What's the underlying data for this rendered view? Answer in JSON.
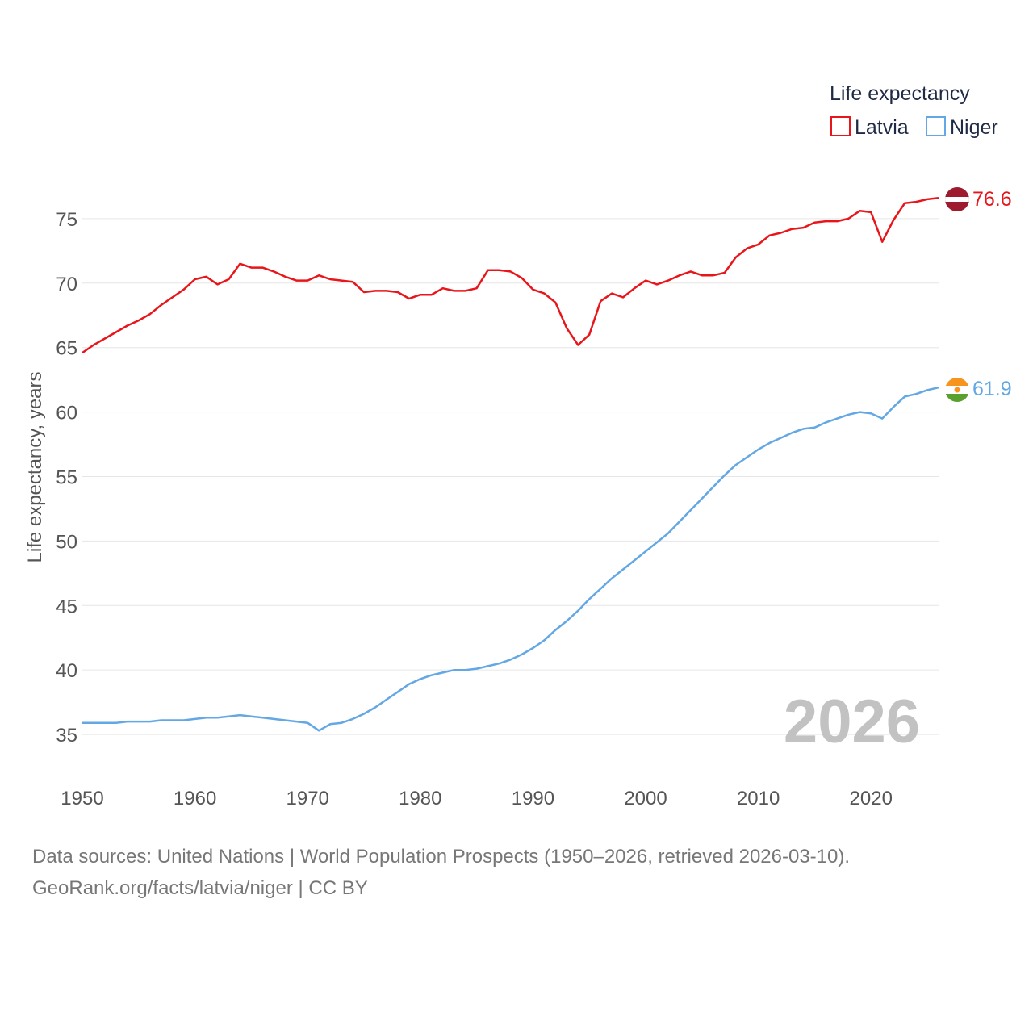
{
  "chart_data": {
    "type": "line",
    "title": "",
    "xlabel": "",
    "ylabel": "Life expectancy, years",
    "xlim": [
      1950,
      2026
    ],
    "ylim": [
      32,
      79
    ],
    "x_ticks": [
      1950,
      1960,
      1970,
      1980,
      1990,
      2000,
      2010,
      2020
    ],
    "y_ticks": [
      35,
      40,
      45,
      50,
      55,
      60,
      65,
      70,
      75
    ],
    "grid": true,
    "year_watermark": "2026",
    "legend": {
      "title": "Life expectancy",
      "position": "top-right",
      "entries": [
        "Latvia",
        "Niger"
      ]
    },
    "x": [
      1950,
      1951,
      1952,
      1953,
      1954,
      1955,
      1956,
      1957,
      1958,
      1959,
      1960,
      1961,
      1962,
      1963,
      1964,
      1965,
      1966,
      1967,
      1968,
      1969,
      1970,
      1971,
      1972,
      1973,
      1974,
      1975,
      1976,
      1977,
      1978,
      1979,
      1980,
      1981,
      1982,
      1983,
      1984,
      1985,
      1986,
      1987,
      1988,
      1989,
      1990,
      1991,
      1992,
      1993,
      1994,
      1995,
      1996,
      1997,
      1998,
      1999,
      2000,
      2001,
      2002,
      2003,
      2004,
      2005,
      2006,
      2007,
      2008,
      2009,
      2010,
      2011,
      2012,
      2013,
      2014,
      2015,
      2016,
      2017,
      2018,
      2019,
      2020,
      2021,
      2022,
      2023,
      2024,
      2025,
      2026
    ],
    "series": [
      {
        "name": "Latvia",
        "color": "#e8161b",
        "flag": "latvia-flag",
        "end_label": "76.6",
        "values": [
          64.6,
          65.2,
          65.7,
          66.2,
          66.7,
          67.1,
          67.6,
          68.3,
          68.9,
          69.5,
          70.3,
          70.5,
          69.9,
          70.3,
          71.5,
          71.2,
          71.2,
          70.9,
          70.5,
          70.2,
          70.2,
          70.6,
          70.3,
          70.2,
          70.1,
          69.3,
          69.4,
          69.4,
          69.3,
          68.8,
          69.1,
          69.1,
          69.6,
          69.4,
          69.4,
          69.6,
          71.0,
          71.0,
          70.9,
          70.4,
          69.5,
          69.2,
          68.5,
          66.5,
          65.2,
          66.0,
          68.6,
          69.2,
          68.9,
          69.6,
          70.2,
          69.9,
          70.2,
          70.6,
          70.9,
          70.6,
          70.6,
          70.8,
          72.0,
          72.7,
          73.0,
          73.7,
          73.9,
          74.2,
          74.3,
          74.7,
          74.8,
          74.8,
          75.0,
          75.6,
          75.5,
          73.2,
          74.9,
          76.2,
          76.3,
          76.5,
          76.6
        ]
      },
      {
        "name": "Niger",
        "color": "#63a7e4",
        "flag": "niger-flag",
        "end_label": "61.9",
        "values": [
          35.9,
          35.9,
          35.9,
          35.9,
          36.0,
          36.0,
          36.0,
          36.1,
          36.1,
          36.1,
          36.2,
          36.3,
          36.3,
          36.4,
          36.5,
          36.4,
          36.3,
          36.2,
          36.1,
          36.0,
          35.9,
          35.3,
          35.8,
          35.9,
          36.2,
          36.6,
          37.1,
          37.7,
          38.3,
          38.9,
          39.3,
          39.6,
          39.8,
          40.0,
          40.0,
          40.1,
          40.3,
          40.5,
          40.8,
          41.2,
          41.7,
          42.3,
          43.1,
          43.8,
          44.6,
          45.5,
          46.3,
          47.1,
          47.8,
          48.5,
          49.2,
          49.9,
          50.6,
          51.5,
          52.4,
          53.3,
          54.2,
          55.1,
          55.9,
          56.5,
          57.1,
          57.6,
          58.0,
          58.4,
          58.7,
          58.8,
          59.2,
          59.5,
          59.8,
          60.0,
          59.9,
          59.5,
          60.4,
          61.2,
          61.4,
          61.7,
          61.9
        ]
      }
    ]
  },
  "source": {
    "line1": "Data sources: United Nations | World Population Prospects (1950–2026, retrieved 2026-03-10).",
    "line2": "GeoRank.org/facts/latvia/niger | CC BY"
  }
}
